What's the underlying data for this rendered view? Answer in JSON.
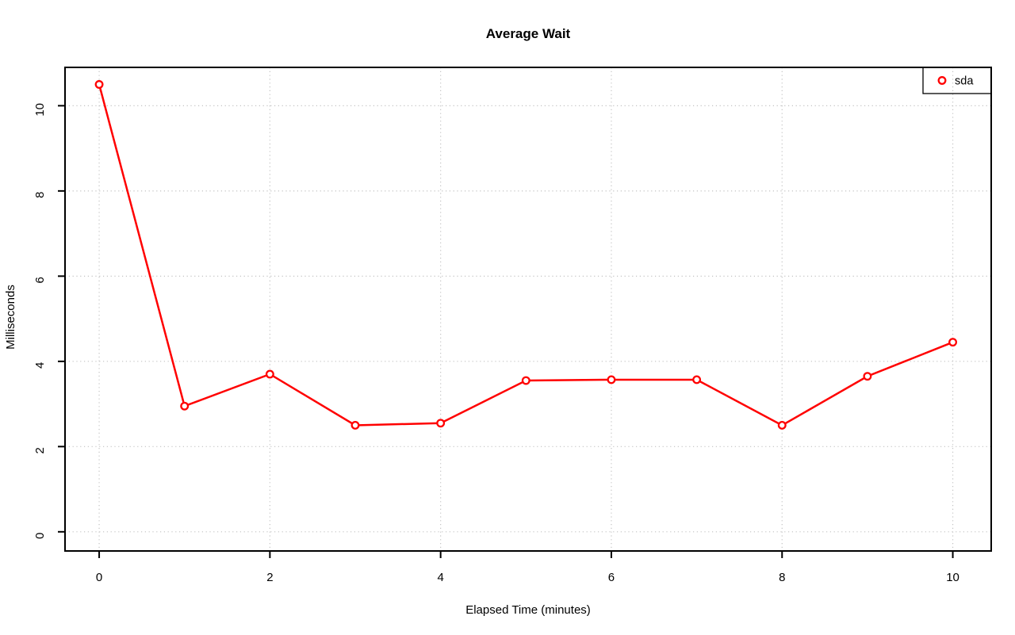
{
  "chart_data": {
    "type": "line",
    "title": "Average Wait",
    "xlabel": "Elapsed Time (minutes)",
    "ylabel": "Milliseconds",
    "x": [
      0,
      1,
      2,
      3,
      4,
      5,
      6,
      7,
      8,
      9,
      10
    ],
    "series": [
      {
        "name": "sda",
        "color": "#ff0000",
        "marker": "open-circle",
        "values": [
          10.5,
          2.95,
          3.7,
          2.5,
          2.55,
          3.55,
          3.57,
          3.57,
          2.5,
          3.65,
          4.45
        ]
      }
    ],
    "x_ticks": [
      "0",
      "2",
      "4",
      "6",
      "8",
      "10"
    ],
    "x_tick_values": [
      0,
      2,
      4,
      6,
      8,
      10
    ],
    "y_ticks": [
      "0",
      "2",
      "4",
      "6",
      "8",
      "10"
    ],
    "y_tick_values": [
      0,
      2,
      4,
      6,
      8,
      10
    ],
    "xlim": [
      -0.4,
      10.45
    ],
    "ylim": [
      -0.45,
      10.9
    ],
    "grid": true,
    "grid_style": "dotted",
    "grid_color": "#c3c3c3",
    "axis_color": "#000000",
    "background_color": "#ffffff",
    "legend": {
      "position": "topright",
      "entries": [
        {
          "label": "sda",
          "color": "#ff0000",
          "marker": "open-circle"
        }
      ]
    }
  }
}
